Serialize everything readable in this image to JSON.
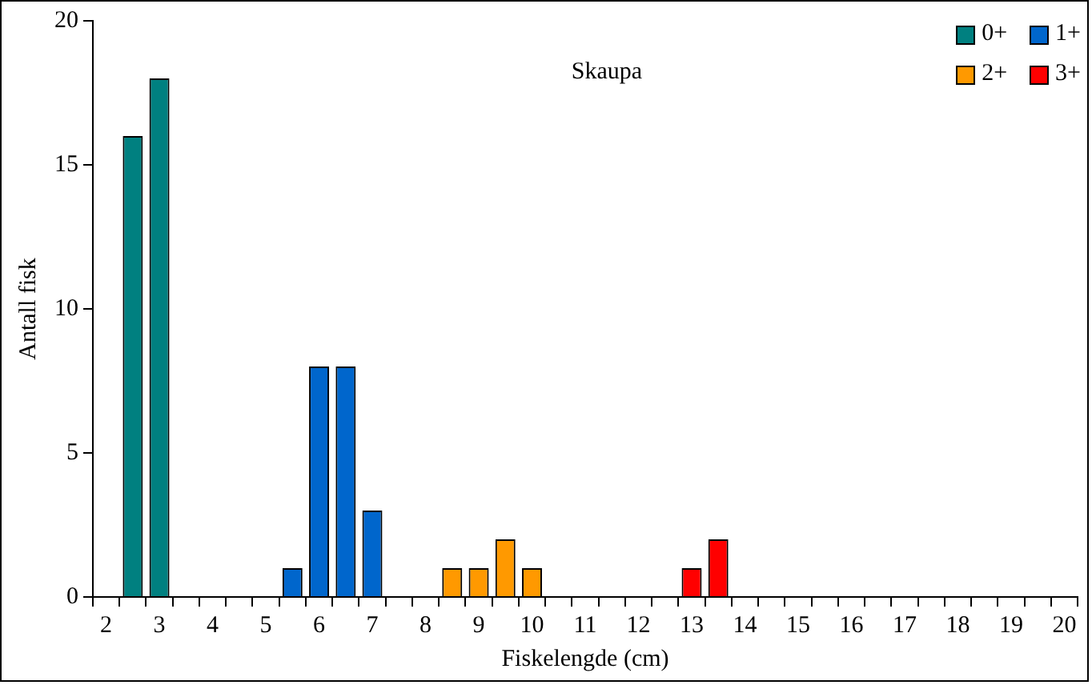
{
  "chart_data": {
    "type": "bar",
    "title": "Skaupa",
    "xlabel": "Fiskelengde (cm)",
    "ylabel": "Antall fisk",
    "categories": [
      "2",
      null,
      "3",
      null,
      "4",
      null,
      "5",
      null,
      "6",
      null,
      "7",
      null,
      "8",
      null,
      "9",
      null,
      "10",
      null,
      "11",
      null,
      "12",
      null,
      "13",
      null,
      "14",
      null,
      "15",
      null,
      "16",
      null,
      "17",
      null,
      "18",
      null,
      "19",
      null,
      "20"
    ],
    "stacked": true,
    "ylim": [
      0,
      20
    ],
    "yticks": [
      0,
      5,
      10,
      15,
      20
    ],
    "grid": false,
    "legend": "top right",
    "series": [
      {
        "name": "0+",
        "color": "#008080",
        "values": [
          null,
          16,
          18,
          null,
          null,
          null,
          null,
          null,
          null,
          null,
          null,
          null,
          null,
          null,
          null,
          null,
          null,
          null,
          null,
          null,
          null,
          null,
          null,
          null,
          null,
          null,
          null,
          null,
          null,
          null,
          null,
          null,
          null,
          null,
          null,
          null,
          null
        ]
      },
      {
        "name": "1+",
        "color": "#0066cc",
        "values": [
          null,
          null,
          null,
          null,
          null,
          null,
          null,
          1,
          8,
          8,
          3,
          null,
          null,
          null,
          null,
          null,
          null,
          null,
          null,
          null,
          null,
          null,
          null,
          null,
          null,
          null,
          null,
          null,
          null,
          null,
          null,
          null,
          null,
          null,
          null,
          null,
          null
        ]
      },
      {
        "name": "2+",
        "color": "#ff9900",
        "values": [
          null,
          null,
          null,
          null,
          null,
          null,
          null,
          null,
          null,
          null,
          null,
          null,
          null,
          1,
          1,
          2,
          1,
          null,
          null,
          null,
          null,
          null,
          null,
          null,
          null,
          null,
          null,
          null,
          null,
          null,
          null,
          null,
          null,
          null,
          null,
          null,
          null
        ]
      },
      {
        "name": "3+",
        "color": "#ff0000",
        "values": [
          null,
          null,
          null,
          null,
          null,
          null,
          null,
          null,
          null,
          null,
          null,
          null,
          null,
          null,
          null,
          null,
          null,
          null,
          null,
          null,
          null,
          null,
          1,
          2,
          null,
          null,
          null,
          null,
          null,
          null,
          null,
          null,
          null,
          null,
          null,
          null,
          null
        ]
      }
    ]
  }
}
